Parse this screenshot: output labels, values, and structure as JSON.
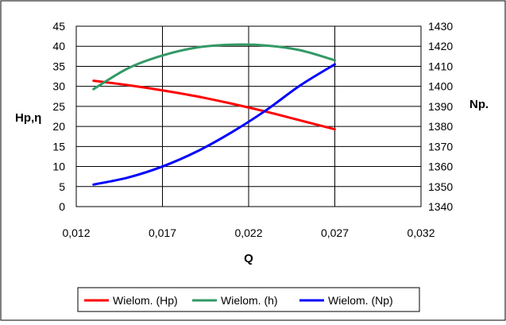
{
  "chart_data": {
    "type": "line",
    "xlabel": "Q",
    "ylabel_left": "Hp,η",
    "ylabel_right": "Np.",
    "x_ticks": [
      "0,012",
      "0,017",
      "0,022",
      "0,027",
      "0,032"
    ],
    "x_tick_values": [
      0.012,
      0.017,
      0.022,
      0.027,
      0.032
    ],
    "xlim": [
      0.012,
      0.032
    ],
    "y_left_ticks": [
      "0",
      "5",
      "10",
      "15",
      "20",
      "25",
      "30",
      "35",
      "40",
      "45"
    ],
    "y_left_tick_values": [
      0,
      5,
      10,
      15,
      20,
      25,
      30,
      35,
      40,
      45
    ],
    "ylim_left": [
      0,
      45
    ],
    "y_right_ticks": [
      "1340",
      "1350",
      "1360",
      "1370",
      "1380",
      "1390",
      "1400",
      "1410",
      "1420",
      "1430"
    ],
    "y_right_tick_values": [
      1340,
      1350,
      1360,
      1370,
      1380,
      1390,
      1400,
      1410,
      1420,
      1430
    ],
    "ylim_right": [
      1340,
      1430
    ],
    "grid": true,
    "legend_position": "bottom",
    "series": [
      {
        "name": "Wielom. (Hp)",
        "axis": "left",
        "color": "#ff0000",
        "x": [
          0.013,
          0.015,
          0.017,
          0.019,
          0.021,
          0.023,
          0.025,
          0.027
        ],
        "y": [
          31.4,
          30.3,
          29.0,
          27.5,
          25.7,
          23.7,
          21.5,
          19.3
        ]
      },
      {
        "name": "Wielom. (h)",
        "axis": "left",
        "color": "#339966",
        "x": [
          0.013,
          0.015,
          0.017,
          0.019,
          0.021,
          0.023,
          0.025,
          0.027
        ],
        "y": [
          29.3,
          34.5,
          37.7,
          39.7,
          40.4,
          40.2,
          39.0,
          36.5
        ]
      },
      {
        "name": "Wielom. (Np)",
        "axis": "right",
        "color": "#0000ff",
        "x": [
          0.013,
          0.015,
          0.017,
          0.019,
          0.021,
          0.023,
          0.025,
          0.027
        ],
        "y": [
          1351,
          1354.5,
          1360,
          1367.5,
          1377,
          1388,
          1400.5,
          1411
        ]
      }
    ]
  }
}
